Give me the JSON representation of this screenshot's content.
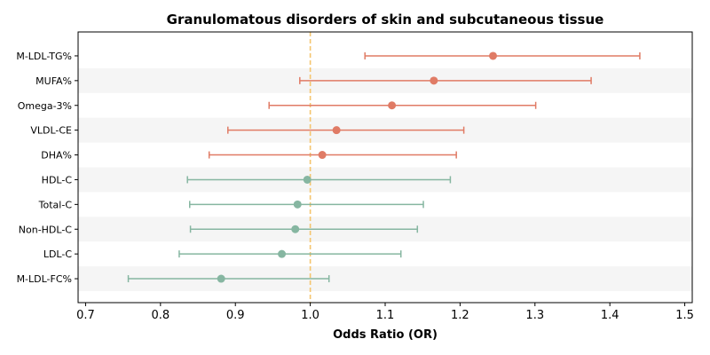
{
  "chart_data": {
    "type": "forest",
    "title": "Granulomatous disorders of skin and subcutaneous tissue",
    "xlabel": "Odds Ratio (OR)",
    "ylabel": "",
    "xlim": [
      0.69,
      1.51
    ],
    "xticks": [
      0.7,
      0.8,
      0.9,
      1.0,
      1.1,
      1.2,
      1.3,
      1.4,
      1.5
    ],
    "xtick_labels": [
      "0.7",
      "0.8",
      "0.9",
      "1.0",
      "1.1",
      "1.2",
      "1.3",
      "1.4",
      "1.5"
    ],
    "reference_line": 1.0,
    "grid": false,
    "alternating_row_shading": true,
    "colors": {
      "positive": "#E07B65",
      "negative": "#86B6A1",
      "reference": "#F5C56E",
      "row_shade": "#F5F5F5"
    },
    "rows": [
      {
        "label": "M-LDL-TG%",
        "or": 1.244,
        "lower": 1.073,
        "upper": 1.44
      },
      {
        "label": "MUFA%",
        "or": 1.165,
        "lower": 0.986,
        "upper": 1.375
      },
      {
        "label": "Omega-3%",
        "or": 1.109,
        "lower": 0.945,
        "upper": 1.301
      },
      {
        "label": "VLDL-CE",
        "or": 1.035,
        "lower": 0.89,
        "upper": 1.205
      },
      {
        "label": "DHA%",
        "or": 1.016,
        "lower": 0.865,
        "upper": 1.195
      },
      {
        "label": "HDL-C",
        "or": 0.996,
        "lower": 0.836,
        "upper": 1.187
      },
      {
        "label": "Total-C",
        "or": 0.983,
        "lower": 0.839,
        "upper": 1.151
      },
      {
        "label": "Non-HDL-C",
        "or": 0.98,
        "lower": 0.84,
        "upper": 1.143
      },
      {
        "label": "LDL-C",
        "or": 0.962,
        "lower": 0.825,
        "upper": 1.121
      },
      {
        "label": "M-LDL-FC%",
        "or": 0.881,
        "lower": 0.757,
        "upper": 1.025
      }
    ]
  }
}
